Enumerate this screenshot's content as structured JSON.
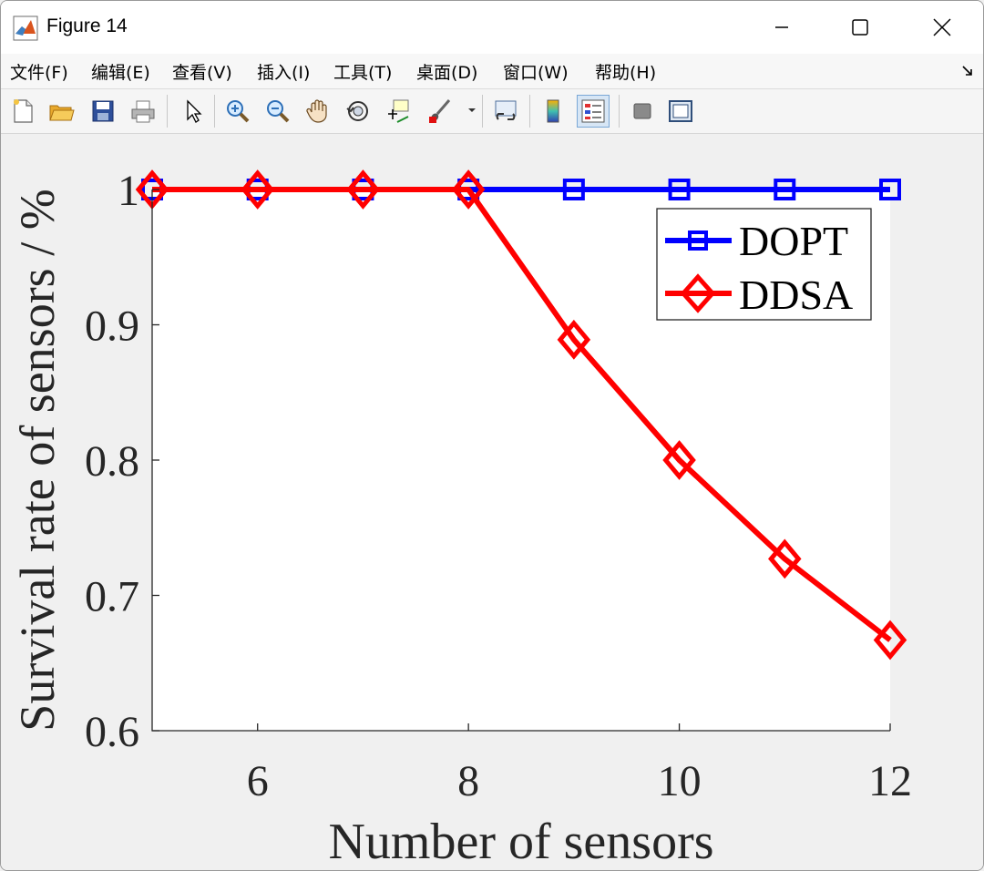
{
  "window": {
    "title": "Figure 14",
    "controls": {
      "minimize": "minimize",
      "maximize": "maximize",
      "close": "close"
    }
  },
  "menubar": {
    "items": [
      "文件(F)",
      "编辑(E)",
      "查看(V)",
      "插入(I)",
      "工具(T)",
      "桌面(D)",
      "窗口(W)",
      "帮助(H)"
    ]
  },
  "toolbar": {
    "icons": [
      "new-figure-icon",
      "open-file-icon",
      "save-icon",
      "print-icon",
      "edit-plot-arrow-icon",
      "zoom-in-icon",
      "zoom-out-icon",
      "pan-hand-icon",
      "rotate-3d-icon",
      "data-cursor-icon",
      "brush-icon",
      "link-plot-icon",
      "colorbar-icon",
      "legend-icon",
      "hide-plot-tools-icon",
      "show-plot-tools-icon"
    ]
  },
  "chart_data": {
    "type": "line",
    "title": "",
    "xlabel": "Number of sensors",
    "ylabel": "Survival rate of sensors / %",
    "xlim": [
      5,
      12
    ],
    "ylim": [
      0.6,
      1.0
    ],
    "xticks": [
      6,
      8,
      10,
      12
    ],
    "yticks": [
      0.6,
      0.7,
      0.8,
      0.9,
      1
    ],
    "ytick_labels": [
      "0.6",
      "0.7",
      "0.8",
      "0.9",
      "1"
    ],
    "grid": false,
    "legend_position": "top-right",
    "x": [
      5,
      6,
      7,
      8,
      9,
      10,
      11,
      12
    ],
    "series": [
      {
        "name": "DOPT",
        "color": "#0000ff",
        "marker": "square",
        "values": [
          1,
          1,
          1,
          1,
          1,
          1,
          1,
          1
        ]
      },
      {
        "name": "DDSA",
        "color": "#ff0000",
        "marker": "diamond",
        "values": [
          1,
          1,
          1,
          1,
          0.889,
          0.8,
          0.727,
          0.667
        ]
      }
    ]
  }
}
